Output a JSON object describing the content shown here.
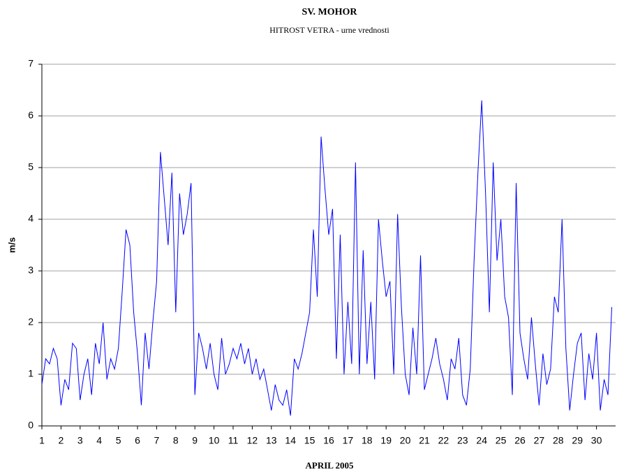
{
  "chart_data": {
    "type": "line",
    "title": "SV. MOHOR",
    "subtitle": "HITROST VETRA - urne vrednosti",
    "xlabel": "APRIL 2005",
    "ylabel": "m/s",
    "xlim": [
      1,
      31
    ],
    "xticks": [
      1,
      2,
      3,
      4,
      5,
      6,
      7,
      8,
      9,
      10,
      11,
      12,
      13,
      14,
      15,
      16,
      17,
      18,
      19,
      20,
      21,
      22,
      23,
      24,
      25,
      26,
      27,
      28,
      29,
      30
    ],
    "ylim": [
      0,
      7
    ],
    "yticks": [
      0,
      1,
      2,
      3,
      4,
      5,
      6,
      7
    ],
    "grid": true,
    "x": [
      1,
      1.2,
      1.4,
      1.6,
      1.8,
      2,
      2.2,
      2.4,
      2.6,
      2.8,
      3,
      3.2,
      3.4,
      3.6,
      3.8,
      4,
      4.2,
      4.4,
      4.6,
      4.8,
      5,
      5.2,
      5.4,
      5.6,
      5.8,
      6,
      6.2,
      6.4,
      6.6,
      6.8,
      7,
      7.2,
      7.4,
      7.6,
      7.8,
      8,
      8.2,
      8.4,
      8.6,
      8.8,
      9,
      9.2,
      9.4,
      9.6,
      9.8,
      10,
      10.2,
      10.4,
      10.6,
      10.8,
      11,
      11.2,
      11.4,
      11.6,
      11.8,
      12,
      12.2,
      12.4,
      12.6,
      12.8,
      13,
      13.2,
      13.4,
      13.6,
      13.8,
      14,
      14.2,
      14.4,
      14.6,
      14.8,
      15,
      15.2,
      15.4,
      15.6,
      15.8,
      16,
      16.2,
      16.4,
      16.6,
      16.8,
      17,
      17.2,
      17.4,
      17.6,
      17.8,
      18,
      18.2,
      18.4,
      18.6,
      18.8,
      19,
      19.2,
      19.4,
      19.6,
      19.8,
      20,
      20.2,
      20.4,
      20.6,
      20.8,
      21,
      21.2,
      21.4,
      21.6,
      21.8,
      22,
      22.2,
      22.4,
      22.6,
      22.8,
      23,
      23.2,
      23.4,
      23.6,
      23.8,
      24,
      24.2,
      24.4,
      24.6,
      24.8,
      25,
      25.2,
      25.4,
      25.6,
      25.8,
      26,
      26.2,
      26.4,
      26.6,
      26.8,
      27,
      27.2,
      27.4,
      27.6,
      27.8,
      28,
      28.2,
      28.4,
      28.6,
      28.8,
      29,
      29.2,
      29.4,
      29.6,
      29.8,
      30,
      30.2,
      30.4,
      30.6,
      30.8
    ],
    "series": [
      {
        "name": "hitrost vetra",
        "color": "#0000ff",
        "values": [
          0.8,
          1.3,
          1.2,
          1.5,
          1.3,
          0.4,
          0.9,
          0.7,
          1.6,
          1.5,
          0.5,
          1.0,
          1.3,
          0.6,
          1.6,
          1.2,
          2.0,
          0.9,
          1.3,
          1.1,
          1.5,
          2.6,
          3.8,
          3.5,
          2.2,
          1.4,
          0.4,
          1.8,
          1.1,
          2.0,
          2.8,
          5.3,
          4.4,
          3.5,
          4.9,
          2.2,
          4.5,
          3.7,
          4.1,
          4.7,
          0.6,
          1.8,
          1.5,
          1.1,
          1.6,
          1.0,
          0.7,
          1.7,
          1.0,
          1.2,
          1.5,
          1.3,
          1.6,
          1.2,
          1.5,
          1.0,
          1.3,
          0.9,
          1.1,
          0.7,
          0.3,
          0.8,
          0.5,
          0.4,
          0.7,
          0.2,
          1.3,
          1.1,
          1.4,
          1.8,
          2.2,
          3.8,
          2.5,
          5.6,
          4.6,
          3.7,
          4.2,
          1.3,
          3.7,
          1.0,
          2.4,
          1.2,
          5.1,
          1.0,
          3.4,
          1.2,
          2.4,
          0.9,
          4.0,
          3.2,
          2.5,
          2.8,
          1.0,
          4.1,
          2.3,
          1.0,
          0.6,
          1.9,
          1.0,
          3.3,
          0.7,
          1.0,
          1.3,
          1.7,
          1.2,
          0.9,
          0.5,
          1.3,
          1.1,
          1.7,
          0.6,
          0.4,
          1.1,
          3.2,
          4.9,
          6.3,
          4.5,
          2.2,
          5.1,
          3.2,
          4.0,
          2.5,
          2.1,
          0.6,
          4.7,
          1.8,
          1.3,
          0.9,
          2.1,
          1.2,
          0.4,
          1.4,
          0.8,
          1.1,
          2.5,
          2.2,
          4.0,
          1.5,
          0.3,
          1.0,
          1.6,
          1.8,
          0.5,
          1.4,
          0.9,
          1.8,
          0.3,
          0.9,
          0.6,
          2.3
        ]
      }
    ]
  }
}
